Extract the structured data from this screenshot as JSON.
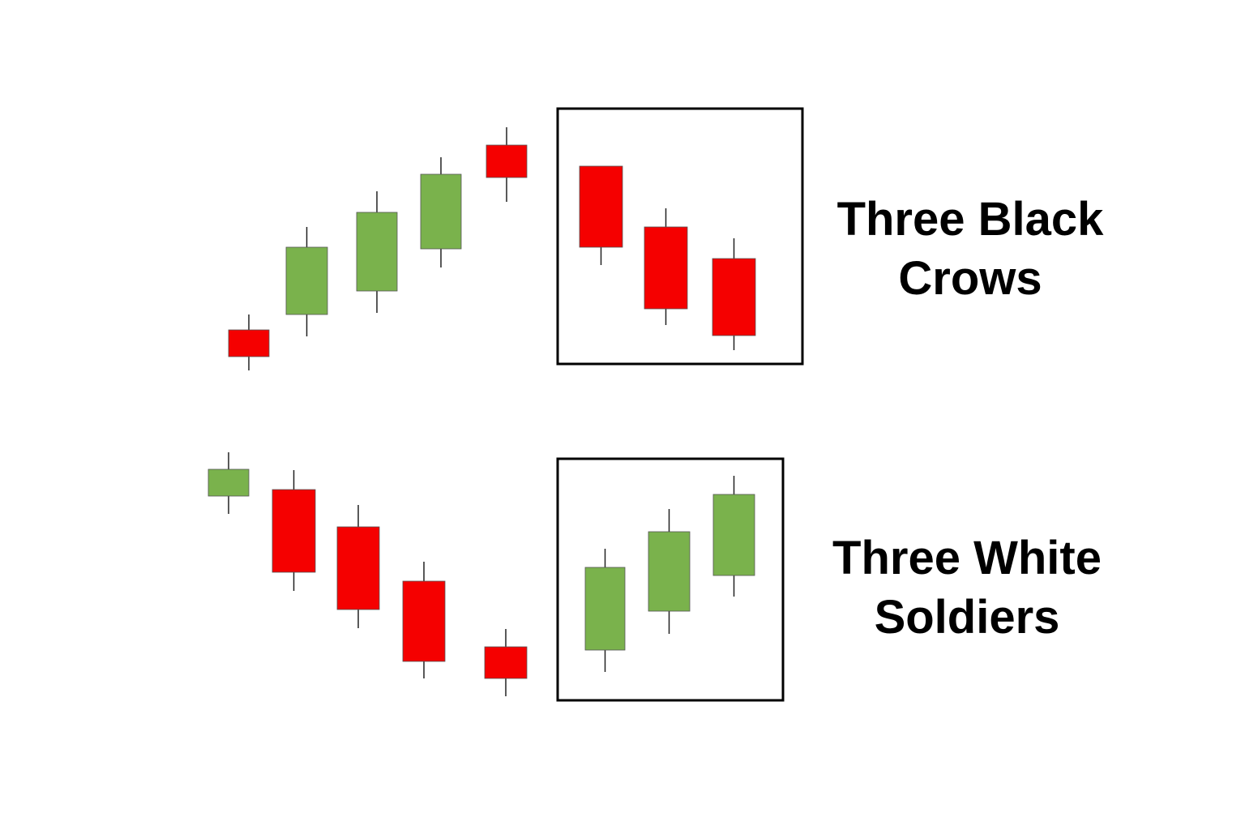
{
  "colors": {
    "bearish": "#f50000",
    "bullish": "#7ab24c",
    "outline": "#000000"
  },
  "patterns": [
    {
      "name_line1": "Three Black",
      "name_line2": "Crows",
      "candles": [
        "bearish",
        "bullish",
        "bullish",
        "bullish",
        "bearish",
        "bearish",
        "bearish",
        "bearish"
      ],
      "highlighted_candles": 3
    },
    {
      "name_line1": "Three White",
      "name_line2": "Soldiers",
      "candles": [
        "bullish",
        "bearish",
        "bearish",
        "bearish",
        "bearish",
        "bullish",
        "bullish",
        "bullish"
      ],
      "highlighted_candles": 3
    }
  ]
}
